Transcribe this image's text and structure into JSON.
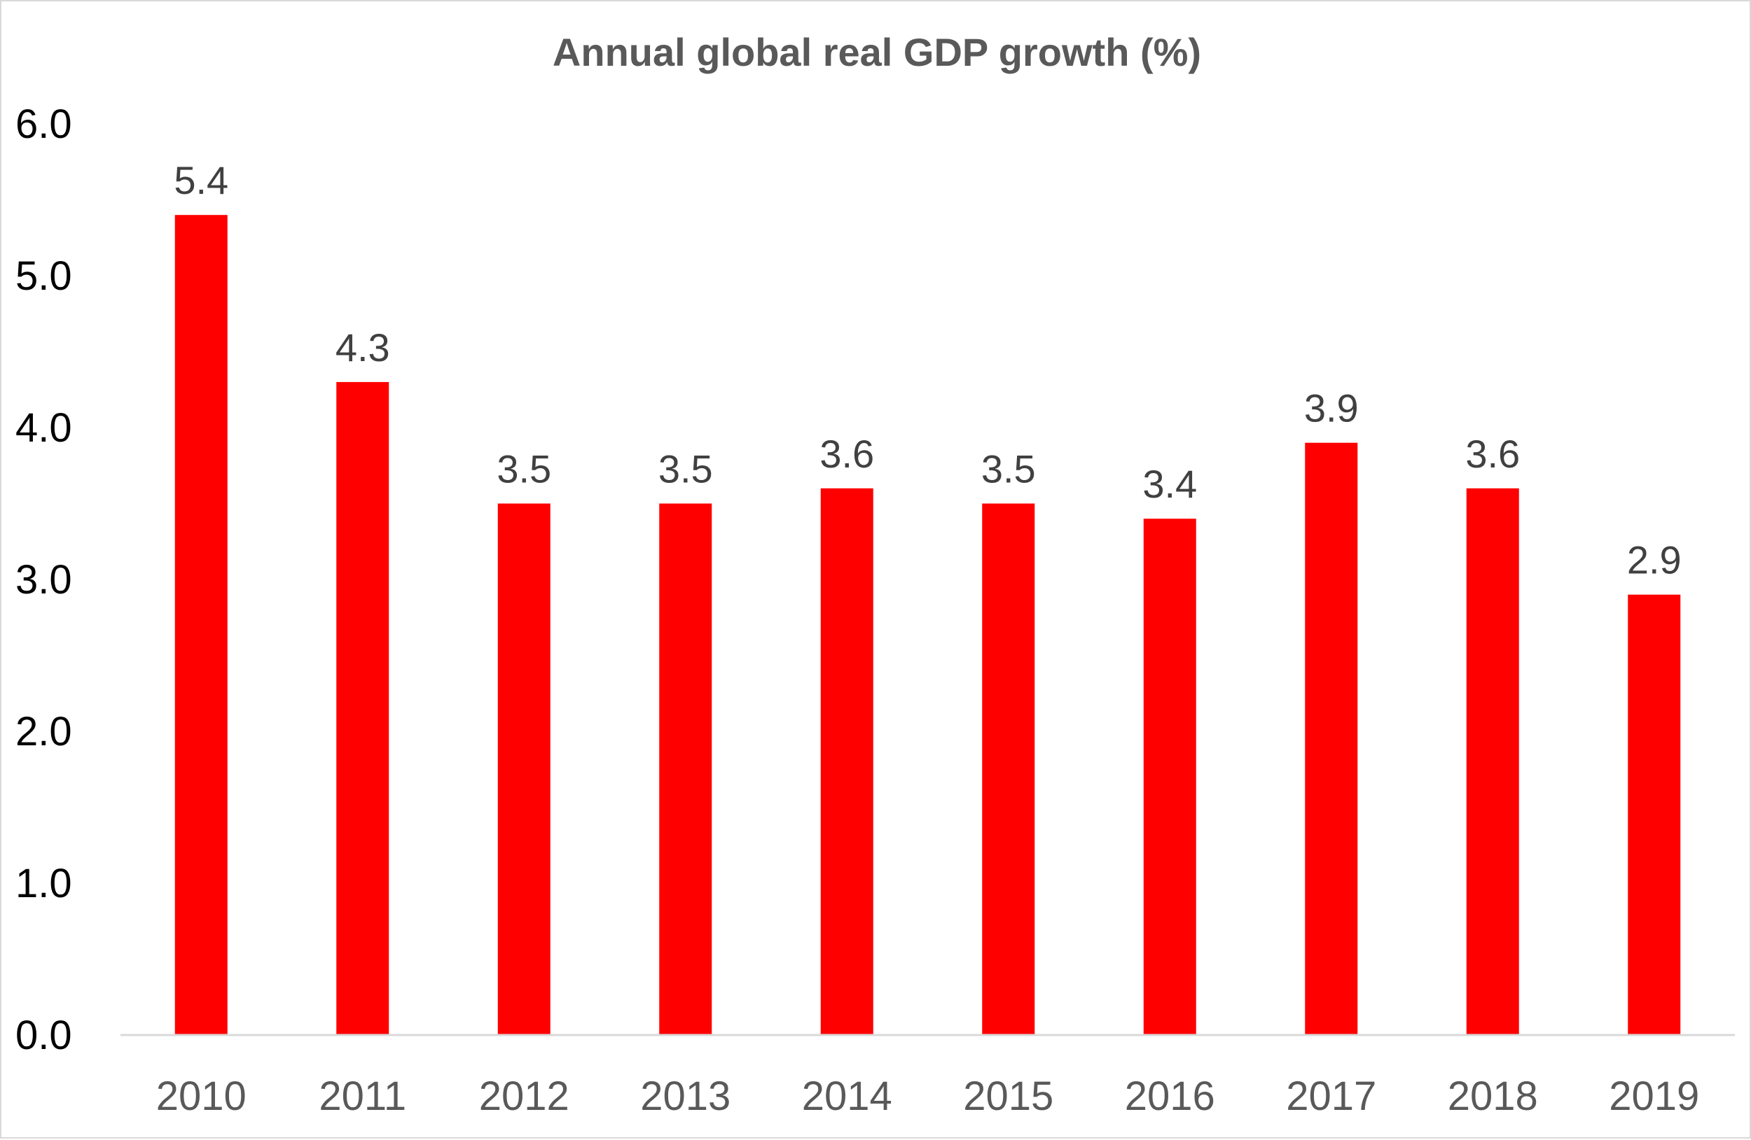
{
  "chart_data": {
    "type": "bar",
    "title": "Annual global real GDP growth (%)",
    "xlabel": "",
    "ylabel": "",
    "categories": [
      "2010",
      "2011",
      "2012",
      "2013",
      "2014",
      "2015",
      "2016",
      "2017",
      "2018",
      "2019"
    ],
    "values": [
      5.4,
      4.3,
      3.5,
      3.5,
      3.6,
      3.5,
      3.4,
      3.9,
      3.6,
      2.9
    ],
    "data_labels": [
      "5.4",
      "4.3",
      "3.5",
      "3.5",
      "3.6",
      "3.5",
      "3.4",
      "3.9",
      "3.6",
      "2.9"
    ],
    "ylim": [
      0,
      6
    ],
    "yticks": [
      "0.0",
      "1.0",
      "2.0",
      "3.0",
      "4.0",
      "5.0",
      "6.0"
    ],
    "ytick_values": [
      0,
      1,
      2,
      3,
      4,
      5,
      6
    ],
    "grid": false,
    "legend": "none",
    "bar_color": "#FF0000",
    "axis_color": "#D9D9D9"
  }
}
